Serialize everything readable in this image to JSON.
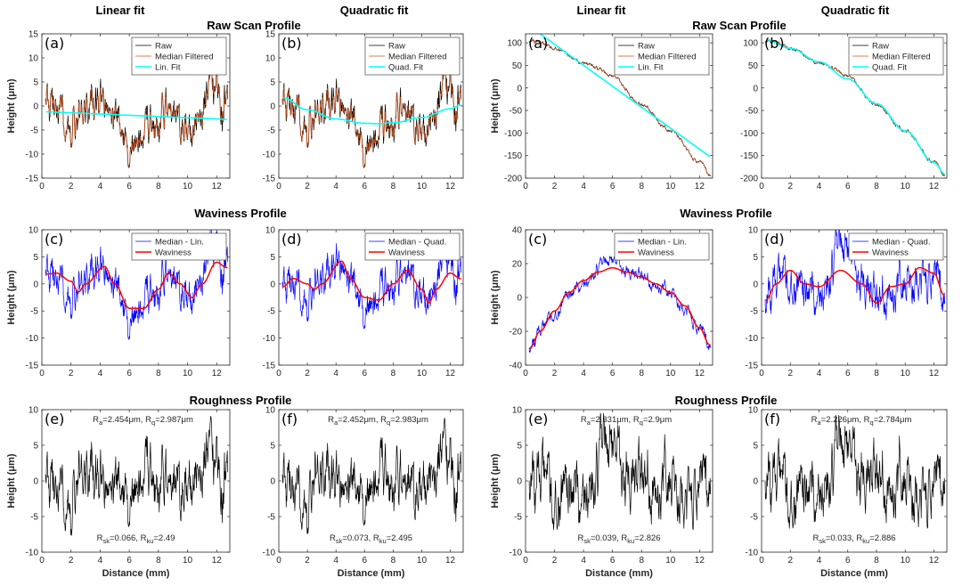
{
  "headers": {
    "left_linear": "Linear fit",
    "left_quadratic": "Quadratic fit",
    "right_linear": "Linear fit",
    "right_quadratic": "Quadratic fit",
    "left_raw": "Raw Scan Profile",
    "right_raw": "Raw Scan Profile",
    "left_waviness": "Waviness Profile",
    "right_waviness": "Waviness Profile",
    "left_roughness": "Roughness Profile",
    "right_roughness": "Roughness Profile"
  },
  "colors": {
    "raw": "#000000",
    "median": "#d95319",
    "fit": "#00ffff",
    "residual": "#0000ff",
    "waviness": "#ff0000",
    "roughness": "#000000"
  },
  "chart_data": {
    "type": "line",
    "xlabel": "Distance (mm)",
    "ylabel": "Height (μm)",
    "xlim": [
      0,
      12.9
    ],
    "xticks": [
      0,
      2,
      4,
      6,
      8,
      10,
      12
    ],
    "groups": [
      {
        "id": "left",
        "lin_fit": {
          "x": [
            0.3,
            12.7
          ],
          "y": [
            -1.2,
            -2.8
          ]
        },
        "quad_fit": {
          "x": [
            0.3,
            2,
            4,
            6,
            7,
            8,
            10,
            12,
            12.7
          ],
          "y": [
            1.7,
            -0.8,
            -2.7,
            -3.6,
            -3.7,
            -3.5,
            -2.4,
            -0.6,
            0.2
          ]
        },
        "waviness_lin": {
          "x": [
            0.3,
            1,
            2,
            2.5,
            3,
            4.3,
            5,
            6,
            7,
            8,
            8.7,
            9.5,
            10.3,
            11,
            12,
            12.7
          ],
          "y": [
            1.8,
            2,
            0.5,
            -1.5,
            0,
            3.2,
            0,
            -4.5,
            -4.5,
            -1,
            2,
            0,
            -2.5,
            0,
            4,
            3
          ]
        },
        "waviness_quad": {
          "x": [
            0.3,
            1,
            2,
            2.5,
            3,
            4.4,
            5,
            6,
            7,
            8,
            9,
            10,
            10.5,
            11,
            12,
            12.7
          ],
          "y": [
            -0.5,
            1,
            0,
            -1,
            0,
            4.2,
            1,
            -2.5,
            -3,
            0,
            2.5,
            -1,
            -3.5,
            -1,
            2,
            1
          ]
        },
        "raw_ylim": [
          -15,
          15
        ],
        "raw_yticks": [
          -15,
          -10,
          -5,
          0,
          5,
          10,
          15
        ],
        "wav_lin_ylim": [
          -15,
          10
        ],
        "wav_lin_yticks": [
          -15,
          -10,
          -5,
          0,
          5,
          10
        ],
        "wav_quad_ylim": [
          -15,
          10
        ],
        "wav_quad_yticks": [
          -15,
          -10,
          -5,
          0,
          5,
          10
        ],
        "rough_ylim": [
          -10,
          10
        ],
        "rough_yticks": [
          -10,
          -5,
          0,
          5,
          10
        ],
        "roughness_stats": [
          {
            "Ra": "=2.454μm,",
            "Rq": "=2.987μm",
            "Rsk": "=0.066,",
            "Rku": "=2.49"
          },
          {
            "Ra": "=2.452μm,",
            "Rq": "=2.983μm",
            "Rsk": "=0.073,",
            "Rku": "=2.495"
          }
        ]
      },
      {
        "id": "right",
        "lin_fit": {
          "x": [
            1,
            12.7
          ],
          "y": [
            120,
            -152
          ]
        },
        "quad_fit": {
          "x": [
            0.3,
            2,
            4,
            6,
            8,
            10,
            12,
            12.8
          ],
          "y": [
            107,
            88,
            58,
            20,
            -35,
            -95,
            -165,
            -192
          ]
        },
        "waviness_lin": {
          "x": [
            0.3,
            1,
            2,
            3,
            4,
            5,
            6,
            7,
            8,
            9,
            10,
            11,
            12,
            12.7
          ],
          "y": [
            -30,
            -20,
            -8,
            3,
            10,
            15,
            17.5,
            15,
            12,
            8,
            3,
            -5,
            -18,
            -28
          ]
        },
        "waviness_quad": {
          "x": [
            0.3,
            1,
            2,
            3,
            4,
            5.5,
            7,
            8,
            9,
            10,
            11,
            12,
            12.7
          ],
          "y": [
            -3,
            0,
            2.5,
            0,
            -0.5,
            2.5,
            0,
            -3.5,
            -0.5,
            0,
            3,
            2,
            -2
          ]
        },
        "raw_ylim": [
          -200,
          120
        ],
        "raw_yticks": [
          -200,
          -150,
          -100,
          -50,
          0,
          50,
          100
        ],
        "wav_lin_ylim": [
          -40,
          40
        ],
        "wav_lin_yticks": [
          -40,
          -20,
          0,
          20,
          40
        ],
        "wav_quad_ylim": [
          -15,
          10
        ],
        "wav_quad_yticks": [
          -15,
          -10,
          -5,
          0,
          5,
          10
        ],
        "rough_ylim": [
          -10,
          10
        ],
        "rough_yticks": [
          -10,
          -5,
          0,
          5,
          10
        ],
        "roughness_stats": [
          {
            "Ra": "=2.331μm,",
            "Rq": "=2.9μm",
            "Rsk": "=0.039,",
            "Rku": "=2.826"
          },
          {
            "Ra": "=2.226μm,",
            "Rq": "=2.784μm",
            "Rsk": "=0.033,",
            "Rku": "=2.886"
          }
        ]
      }
    ],
    "panel_letters": {
      "raw": [
        "(a)",
        "(b)"
      ],
      "waviness": [
        "(c)",
        "(d)"
      ],
      "roughness": [
        "(e)",
        "(f)"
      ]
    },
    "legends": {
      "raw_lin": [
        "Raw",
        "Median Filtered",
        "Lin. Fit"
      ],
      "raw_quad": [
        "Raw",
        "Median Filtered",
        "Quad. Fit"
      ],
      "wav_lin": [
        "Median - Lin.",
        "Waviness"
      ],
      "wav_quad": [
        "Median - Quad.",
        "Waviness"
      ]
    },
    "stat_symbols": {
      "R": "R",
      "a": "a",
      "q": "q",
      "sk": "sk",
      "ku": "ku"
    }
  }
}
